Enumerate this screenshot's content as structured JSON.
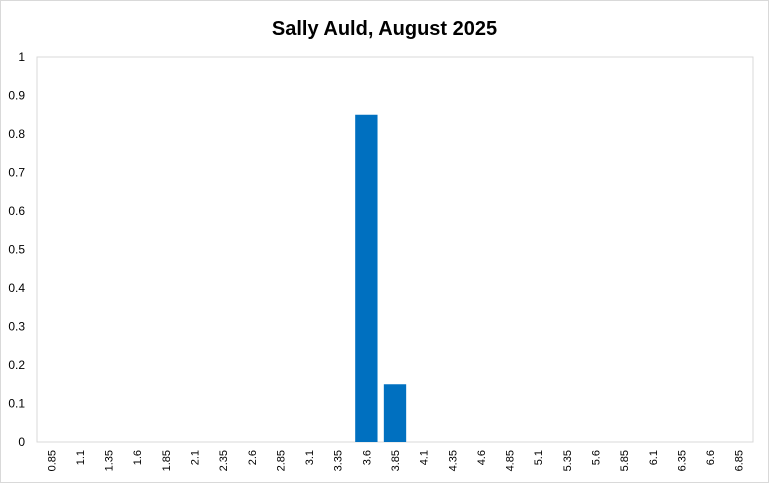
{
  "chart_data": {
    "type": "bar",
    "title": "Sally Auld, August 2025",
    "xlabel": "",
    "ylabel": "",
    "ylim": [
      0,
      1
    ],
    "yticks": [
      "0",
      "0.1",
      "0.2",
      "0.3",
      "0.4",
      "0.5",
      "0.6",
      "0.7",
      "0.8",
      "0.9",
      "1"
    ],
    "categories": [
      "0.85",
      "1.1",
      "1.35",
      "1.6",
      "1.85",
      "2.1",
      "2.35",
      "2.6",
      "2.85",
      "3.1",
      "3.35",
      "3.6",
      "3.85",
      "4.1",
      "4.35",
      "4.6",
      "4.85",
      "5.1",
      "5.35",
      "5.6",
      "5.85",
      "6.1",
      "6.35",
      "6.6",
      "6.85"
    ],
    "values": [
      0,
      0,
      0,
      0,
      0,
      0,
      0,
      0,
      0,
      0,
      0,
      0.85,
      0.15,
      0,
      0,
      0,
      0,
      0,
      0,
      0,
      0,
      0,
      0,
      0,
      0
    ],
    "bar_color": "#0070c0",
    "grid": false,
    "legend": "none"
  }
}
